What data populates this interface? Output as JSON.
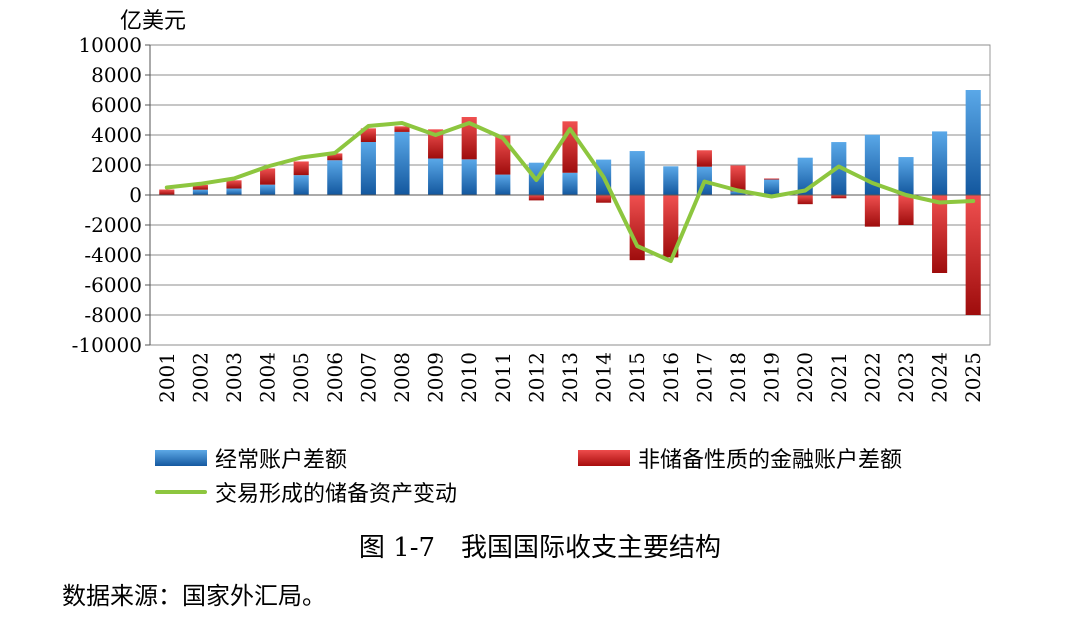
{
  "chart_data": {
    "type": "bar",
    "unit_label": "亿美元",
    "categories": [
      "2001",
      "2002",
      "2003",
      "2004",
      "2005",
      "2006",
      "2007",
      "2008",
      "2009",
      "2010",
      "2011",
      "2012",
      "2013",
      "2014",
      "2015",
      "2016",
      "2017",
      "2018",
      "2019",
      "2020",
      "2021",
      "2022",
      "2023",
      "2024",
      "2025"
    ],
    "ylim": [
      -10000,
      10000
    ],
    "yticks": [
      "10000",
      "8000",
      "6000",
      "4000",
      "2000",
      "0",
      "-2000",
      "-4000",
      "-6000",
      "-8000",
      "-10000"
    ],
    "grid": true,
    "legend_position": "bottom",
    "series": [
      {
        "name": "经常账户差额",
        "kind": "bar",
        "color": "#1f6fb5",
        "values": [
          17,
          354,
          431,
          689,
          1324,
          2318,
          3532,
          4206,
          2433,
          2378,
          1361,
          2154,
          1482,
          2360,
          2930,
          1913,
          1887,
          241,
          1029,
          2488,
          3529,
          4019,
          2530,
          4239,
          7000
        ]
      },
      {
        "name": "非储备性质的金融账户差额",
        "kind": "bar",
        "color": "#cc1a1a",
        "values": [
          348,
          323,
          549,
          1082,
          912,
          453,
          911,
          371,
          1945,
          2822,
          2600,
          -360,
          3430,
          -514,
          -4345,
          -4161,
          1095,
          1727,
          73,
          -611,
          -219,
          -2110,
          -2000,
          -5200,
          -8000
        ]
      },
      {
        "name": "交易形成的储备资产变动",
        "kind": "line",
        "color": "#8dc63f",
        "values": [
          500,
          750,
          1100,
          1900,
          2500,
          2800,
          4600,
          4800,
          4000,
          4800,
          3800,
          1000,
          4400,
          1200,
          -3400,
          -4400,
          900,
          300,
          -100,
          300,
          1900,
          800,
          0,
          -500,
          -400
        ]
      }
    ]
  },
  "caption": "图 1-7　我国国际收支主要结构",
  "source_note": "数据来源：国家外汇局。"
}
